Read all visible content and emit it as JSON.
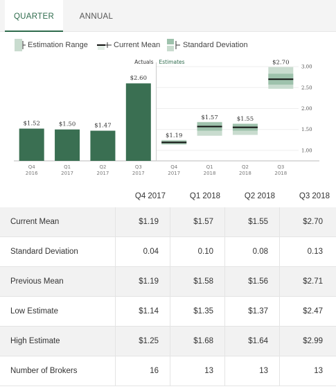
{
  "tabs": {
    "quarter": "QUARTER",
    "annual": "ANNUAL"
  },
  "legend": {
    "estimation_range": "Estimation Range",
    "current_mean": "Current Mean",
    "standard_deviation": "Standard Deviation"
  },
  "colors": {
    "actual_bar": "#3a6f52",
    "range_bar": "#9ec2ac",
    "std_bar": "#c9dccf",
    "mean_line": "#111111",
    "accent": "#2e6b4c"
  },
  "chart_data": {
    "type": "bar",
    "section_labels": {
      "actuals": "Actuals",
      "estimates": "Estimates"
    },
    "categories": [
      [
        "Q4",
        "2016"
      ],
      [
        "Q1",
        "2017"
      ],
      [
        "Q2",
        "2017"
      ],
      [
        "Q3",
        "2017"
      ],
      [
        "Q4",
        "2017"
      ],
      [
        "Q1",
        "2018"
      ],
      [
        "Q2",
        "2018"
      ],
      [
        "Q3",
        "2018"
      ]
    ],
    "actuals": [
      {
        "index": 0,
        "value": 1.52,
        "label": "$1.52"
      },
      {
        "index": 1,
        "value": 1.5,
        "label": "$1.50"
      },
      {
        "index": 2,
        "value": 1.47,
        "label": "$1.47"
      },
      {
        "index": 3,
        "value": 2.6,
        "label": "$2.60"
      }
    ],
    "estimates": [
      {
        "index": 4,
        "mean": 1.19,
        "low": 1.14,
        "high": 1.25,
        "std": 0.04,
        "label": "$1.19"
      },
      {
        "index": 5,
        "mean": 1.57,
        "low": 1.35,
        "high": 1.68,
        "std": 0.1,
        "label": "$1.57"
      },
      {
        "index": 6,
        "mean": 1.55,
        "low": 1.37,
        "high": 1.64,
        "std": 0.08,
        "label": "$1.55"
      },
      {
        "index": 7,
        "mean": 2.7,
        "low": 2.47,
        "high": 2.99,
        "std": 0.13,
        "label": "$2.70"
      }
    ],
    "y_ticks": [
      "1.00",
      "1.50",
      "2.00",
      "2.50",
      "3.00"
    ],
    "ylim": [
      0.75,
      3.2
    ]
  },
  "table": {
    "columns": [
      "Q4 2017",
      "Q1 2018",
      "Q2 2018",
      "Q3 2018"
    ],
    "rows": [
      {
        "label": "Current Mean",
        "values": [
          "$1.19",
          "$1.57",
          "$1.55",
          "$2.70"
        ]
      },
      {
        "label": "Standard Deviation",
        "values": [
          "0.04",
          "0.10",
          "0.08",
          "0.13"
        ]
      },
      {
        "label": "Previous Mean",
        "values": [
          "$1.19",
          "$1.58",
          "$1.56",
          "$2.71"
        ]
      },
      {
        "label": "Low Estimate",
        "values": [
          "$1.14",
          "$1.35",
          "$1.37",
          "$2.47"
        ]
      },
      {
        "label": "High Estimate",
        "values": [
          "$1.25",
          "$1.68",
          "$1.64",
          "$2.99"
        ]
      },
      {
        "label": "Number of Brokers",
        "values": [
          "16",
          "13",
          "13",
          "13"
        ]
      }
    ]
  }
}
